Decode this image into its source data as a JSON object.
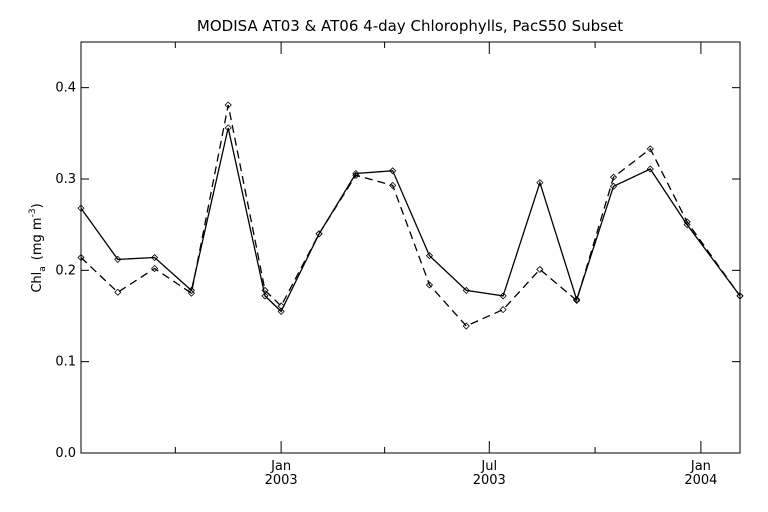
{
  "chart_data": {
    "type": "line",
    "title": "MODISA AT03 & AT06 4-day Chlorophylls, PacS50 Subset",
    "xlabel": "",
    "ylabel": "Chl_a (mg m^-3)",
    "ylabel_parts": {
      "main": "Chl",
      "sub": "a",
      "units": "(mg m",
      "sup": "-3",
      "close": ")"
    },
    "xlim": [
      "2002-07-11",
      "2004-02-04"
    ],
    "ylim": [
      0.0,
      0.45
    ],
    "y_ticks": [
      {
        "value": 0.0,
        "label": "0.0"
      },
      {
        "value": 0.1,
        "label": "0.1"
      },
      {
        "value": 0.2,
        "label": "0.2"
      },
      {
        "value": 0.3,
        "label": "0.3"
      },
      {
        "value": 0.4,
        "label": "0.4"
      }
    ],
    "x_minor_ticks": [
      "2002-10-01",
      "2003-04-01",
      "2003-10-01"
    ],
    "x_major_ticks": [
      {
        "date": "2003-01-01",
        "month": "Jan",
        "year": "2003"
      },
      {
        "date": "2003-07-01",
        "month": "Jul",
        "year": "2003"
      },
      {
        "date": "2004-01-01",
        "month": "Jan",
        "year": "2004"
      }
    ],
    "grid": false,
    "series": [
      {
        "style": "solid",
        "color": "#000000",
        "x": [
          "2002-07-11",
          "2002-08-12",
          "2002-09-13",
          "2002-10-15",
          "2002-11-16",
          "2002-12-18",
          "2003-01-01",
          "2003-02-03",
          "2003-03-07",
          "2003-04-08",
          "2003-05-10",
          "2003-06-11",
          "2003-07-13",
          "2003-08-14",
          "2003-09-15",
          "2003-10-17",
          "2003-11-18",
          "2003-12-20",
          "2004-02-04"
        ],
        "values": [
          0.268,
          0.212,
          0.214,
          0.178,
          0.356,
          0.172,
          0.155,
          0.24,
          0.306,
          0.309,
          0.216,
          0.178,
          0.172,
          0.296,
          0.168,
          0.292,
          0.311,
          0.25,
          0.172
        ]
      },
      {
        "style": "dashed",
        "color": "#000000",
        "x": [
          "2002-07-11",
          "2002-08-12",
          "2002-09-13",
          "2002-10-15",
          "2002-11-16",
          "2002-12-18",
          "2003-01-01",
          "2003-02-03",
          "2003-03-07",
          "2003-04-08",
          "2003-05-10",
          "2003-06-11",
          "2003-07-13",
          "2003-08-14",
          "2003-09-15",
          "2003-10-17",
          "2003-11-18",
          "2003-12-20",
          "2004-02-04"
        ],
        "values": [
          0.214,
          0.176,
          0.202,
          0.175,
          0.381,
          0.178,
          0.161,
          0.24,
          0.304,
          0.293,
          0.184,
          0.139,
          0.157,
          0.201,
          0.167,
          0.302,
          0.333,
          0.253,
          0.172
        ]
      }
    ]
  }
}
